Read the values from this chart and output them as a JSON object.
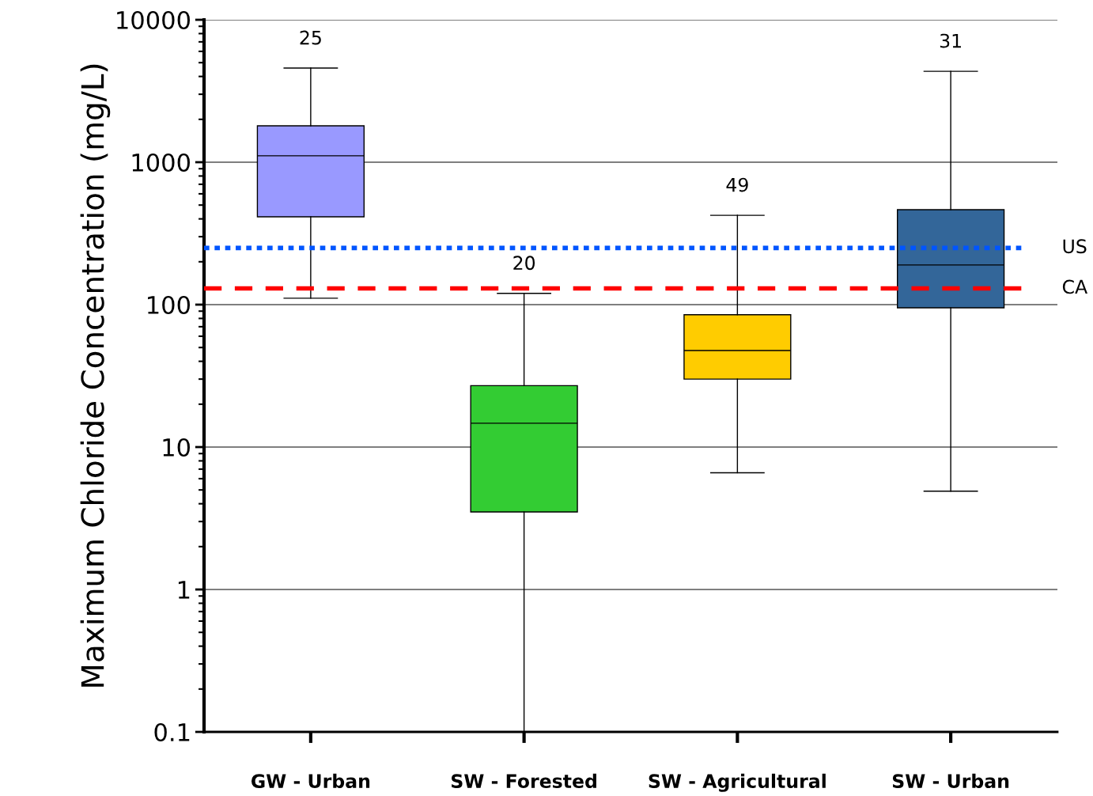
{
  "chart_data": {
    "type": "box",
    "ylabel": "Maximum Chloride Concentration (mg/L)",
    "categories": [
      "GW - Urban",
      "SW - Forested",
      "SW - Agricultural",
      "SW - Urban"
    ],
    "boxes": [
      {
        "low": 111,
        "q1": 414,
        "median": 1110,
        "q3": 1800,
        "high": 4580
      },
      {
        "low": 0.1,
        "q1": 3.5,
        "median": 14.7,
        "q3": 27,
        "high": 120
      },
      {
        "low": 6.6,
        "q1": 30,
        "median": 47.6,
        "q3": 85,
        "high": 424
      },
      {
        "low": 4.9,
        "q1": 95,
        "median": 190,
        "q3": 464,
        "high": 4350
      }
    ],
    "colors": [
      "#9999ff",
      "#33cc33",
      "#ffcc00",
      "#336699"
    ],
    "log": "y",
    "ylim": [
      0.1,
      10000
    ],
    "yticks": [
      0.1,
      1,
      10,
      100,
      1000,
      10000
    ],
    "grid": "y",
    "ref_lines": [
      {
        "axis": "y",
        "value": 250,
        "label": "US",
        "color": "#0055ff",
        "line_style": "dotted"
      },
      {
        "axis": "y",
        "value": 130,
        "label": "CA",
        "color": "#ff0000",
        "line_style": "dashed"
      }
    ],
    "annotations": [
      "25",
      "20",
      "49",
      "31"
    ]
  }
}
